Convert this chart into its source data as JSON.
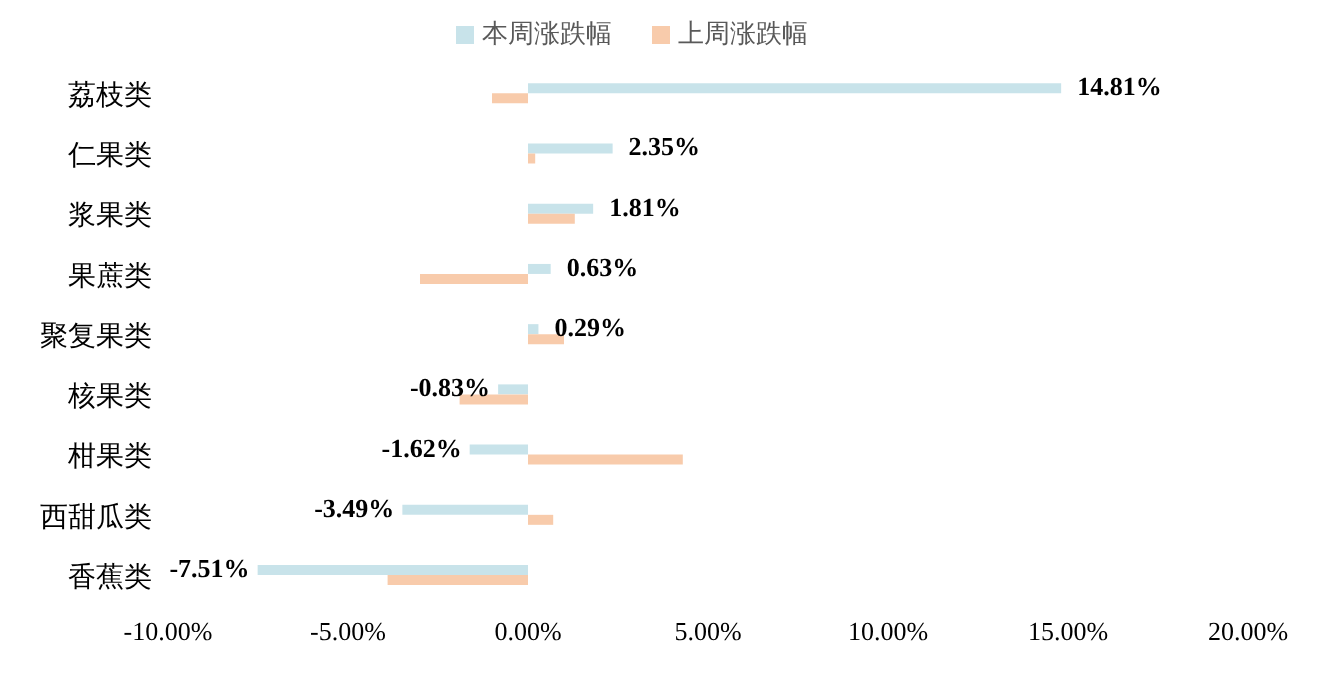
{
  "chart_data": {
    "type": "bar",
    "orientation": "horizontal",
    "categories": [
      "荔枝类",
      "仁果类",
      "浆果类",
      "果蔗类",
      "聚复果类",
      "核果类",
      "柑果类",
      "西甜瓜类",
      "香蕉类"
    ],
    "series": [
      {
        "name": "本周涨跌幅",
        "color": "#c8e3ea",
        "values": [
          14.81,
          2.35,
          1.81,
          0.63,
          0.29,
          -0.83,
          -1.62,
          -3.49,
          -7.51
        ],
        "value_labels": [
          "14.81%",
          "2.35%",
          "1.81%",
          "0.63%",
          "0.29%",
          "-0.83%",
          "-1.62%",
          "-3.49%",
          "-7.51%"
        ]
      },
      {
        "name": "上周涨跌幅",
        "color": "#f8cbab",
        "values": [
          -1.0,
          0.2,
          1.3,
          -3.0,
          1.0,
          -1.9,
          4.3,
          0.7,
          -3.9
        ]
      }
    ],
    "xlim": [
      -10,
      20
    ],
    "xticks": [
      {
        "value": -10,
        "label": "-10.00%"
      },
      {
        "value": -5,
        "label": "-5.00%"
      },
      {
        "value": 0,
        "label": "0.00%"
      },
      {
        "value": 5,
        "label": "5.00%"
      },
      {
        "value": 10,
        "label": "10.00%"
      },
      {
        "value": 15,
        "label": "15.00%"
      },
      {
        "value": 20,
        "label": "20.00%"
      }
    ],
    "grid": false,
    "legend": "top"
  }
}
